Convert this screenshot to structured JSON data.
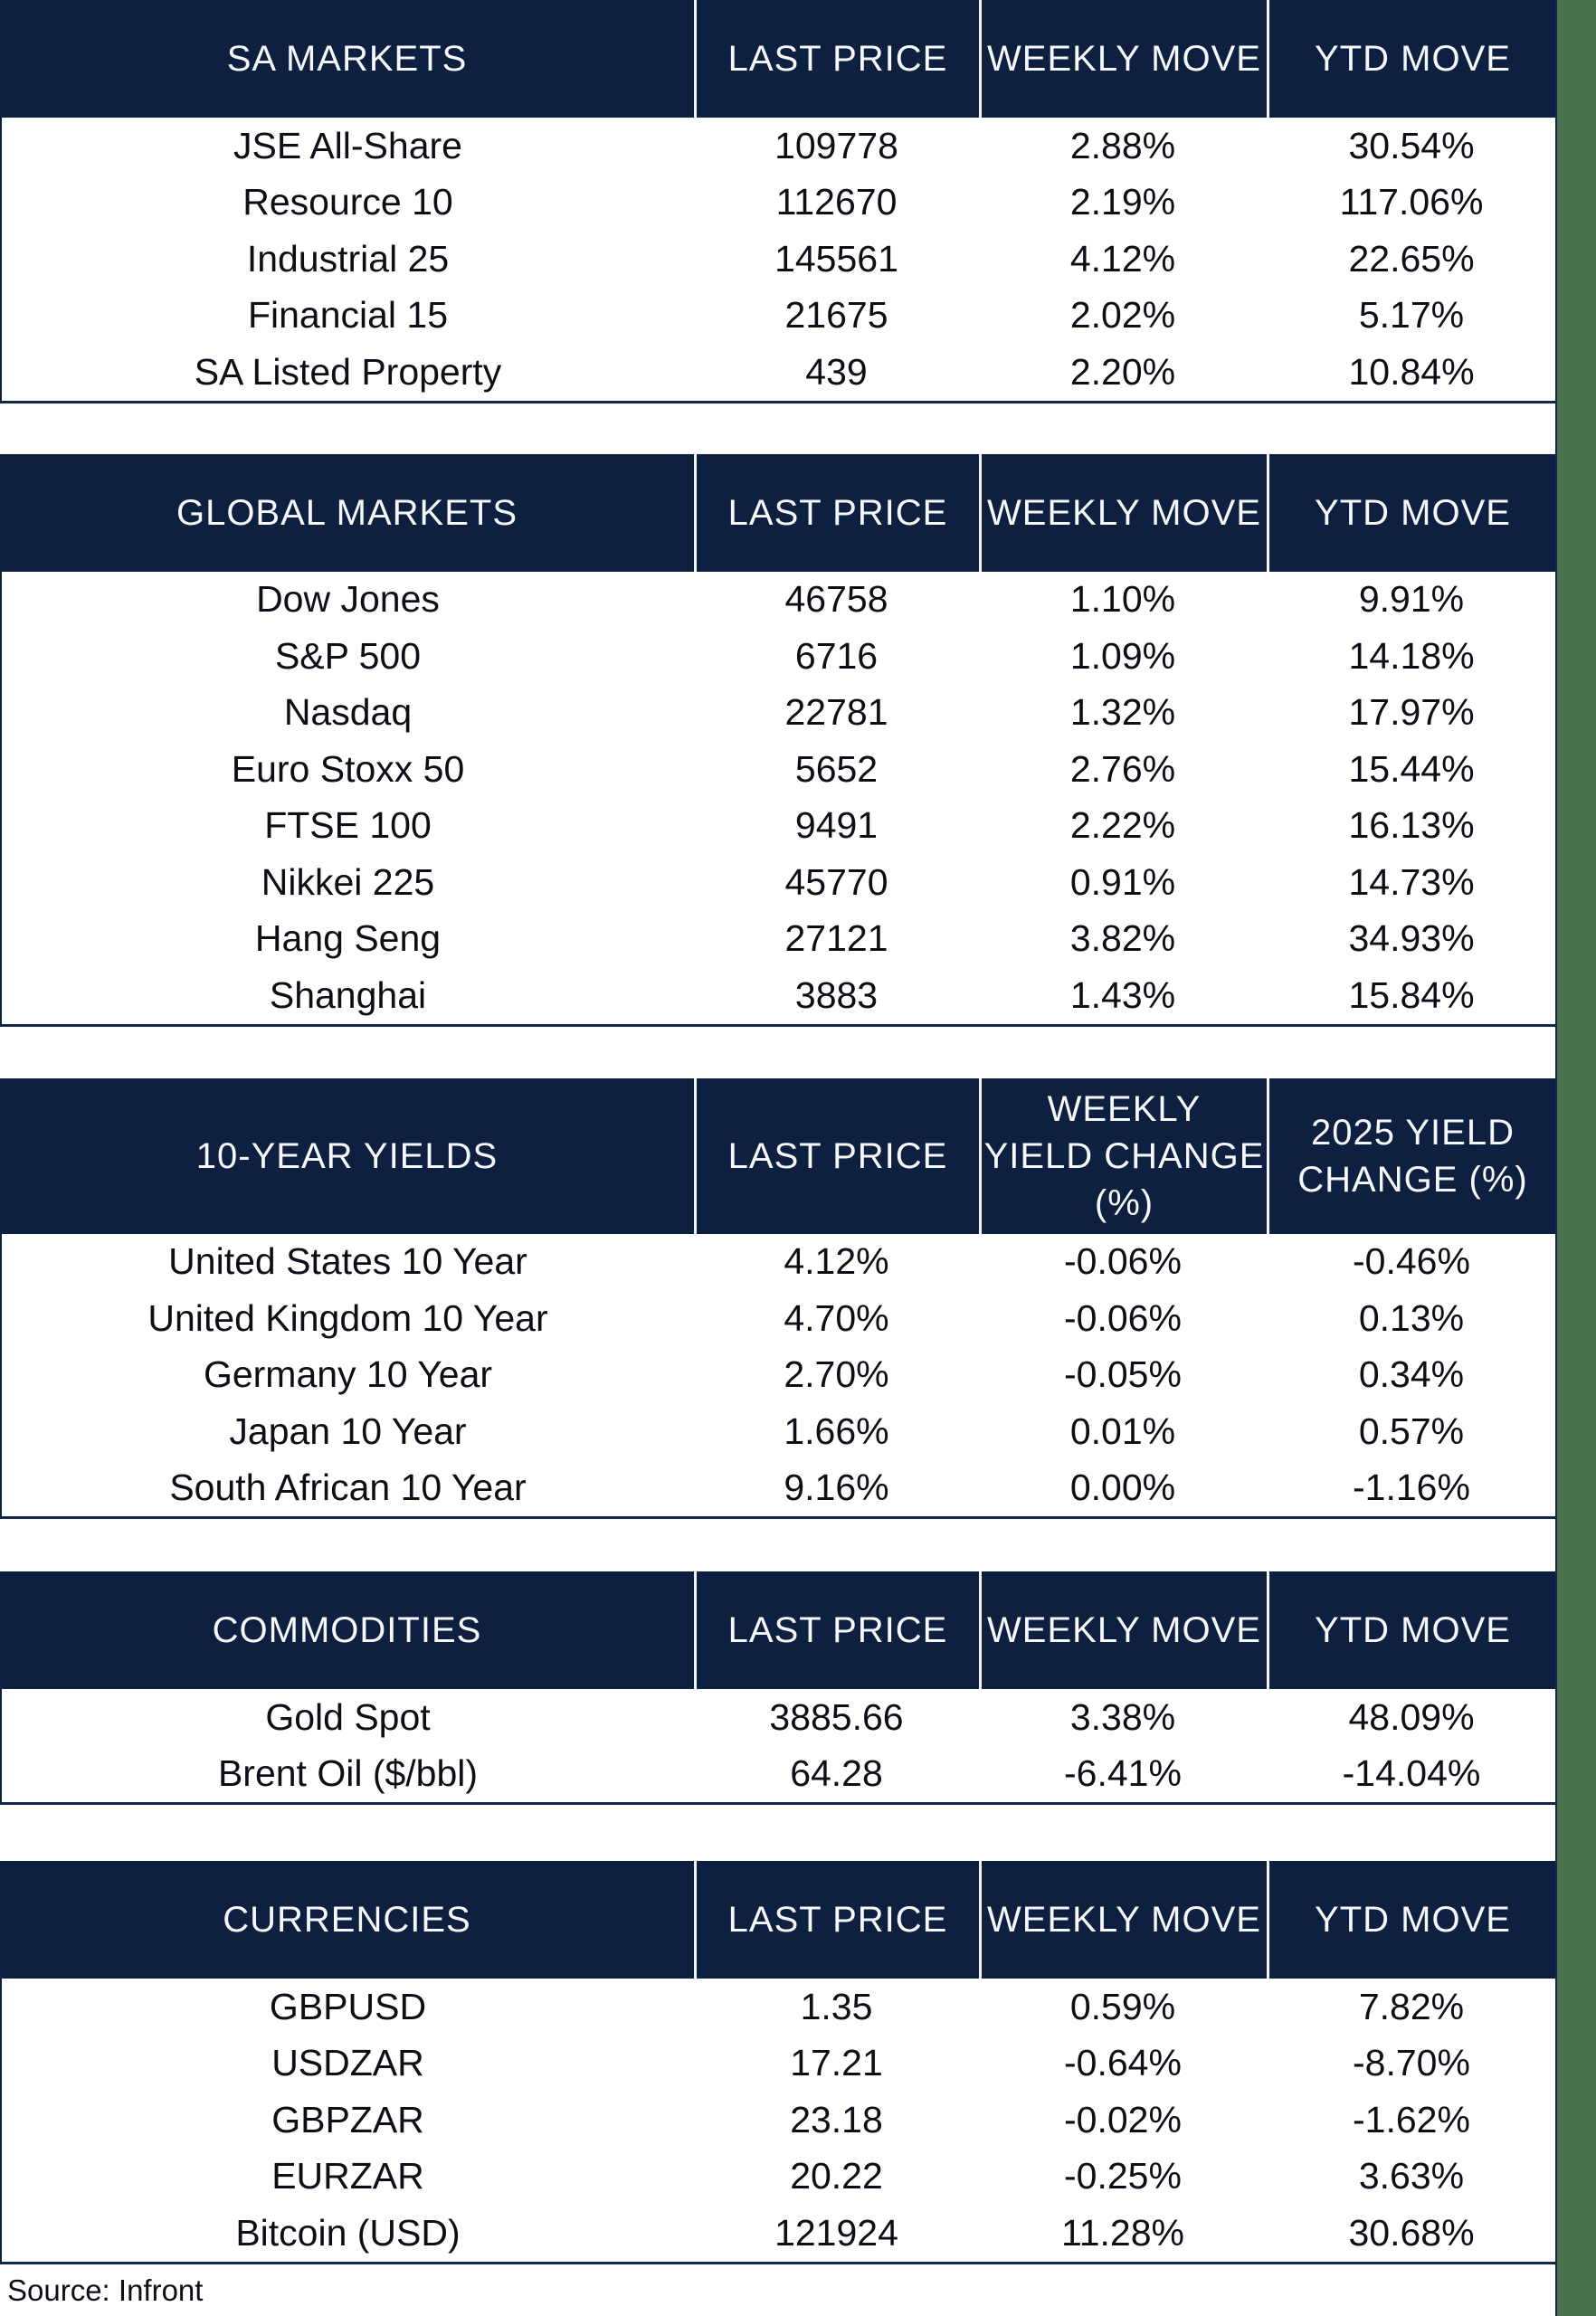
{
  "source_note": "Source: Infront",
  "chart_data": [
    {
      "type": "table",
      "title": "SA MARKETS",
      "columns": [
        "SA MARKETS",
        "LAST PRICE",
        "WEEKLY MOVE",
        "YTD MOVE"
      ],
      "rows": [
        [
          "JSE All-Share",
          "109778",
          "2.88%",
          "30.54%"
        ],
        [
          "Resource 10",
          "112670",
          "2.19%",
          "117.06%"
        ],
        [
          "Industrial 25",
          "145561",
          "4.12%",
          "22.65%"
        ],
        [
          "Financial 15",
          "21675",
          "2.02%",
          "5.17%"
        ],
        [
          "SA Listed Property",
          "439",
          "2.20%",
          "10.84%"
        ]
      ]
    },
    {
      "type": "table",
      "title": "GLOBAL MARKETS",
      "columns": [
        "GLOBAL MARKETS",
        "LAST PRICE",
        "WEEKLY MOVE",
        "YTD MOVE"
      ],
      "rows": [
        [
          "Dow Jones",
          "46758",
          "1.10%",
          "9.91%"
        ],
        [
          "S&P 500",
          "6716",
          "1.09%",
          "14.18%"
        ],
        [
          "Nasdaq",
          "22781",
          "1.32%",
          "17.97%"
        ],
        [
          "Euro Stoxx 50",
          "5652",
          "2.76%",
          "15.44%"
        ],
        [
          "FTSE 100",
          "9491",
          "2.22%",
          "16.13%"
        ],
        [
          "Nikkei 225",
          "45770",
          "0.91%",
          "14.73%"
        ],
        [
          "Hang Seng",
          "27121",
          "3.82%",
          "34.93%"
        ],
        [
          "Shanghai",
          "3883",
          "1.43%",
          "15.84%"
        ]
      ]
    },
    {
      "type": "table",
      "title": "10-YEAR YIELDS",
      "columns": [
        "10-YEAR YIELDS",
        "LAST PRICE",
        "WEEKLY\nYIELD CHANGE\n(%)",
        "2025 YIELD\nCHANGE (%)"
      ],
      "rows": [
        [
          "United States 10 Year",
          "4.12%",
          "-0.06%",
          "-0.46%"
        ],
        [
          "United Kingdom 10 Year",
          "4.70%",
          "-0.06%",
          "0.13%"
        ],
        [
          "Germany 10 Year",
          "2.70%",
          "-0.05%",
          "0.34%"
        ],
        [
          "Japan 10 Year",
          "1.66%",
          "0.01%",
          "0.57%"
        ],
        [
          "South African 10 Year",
          "9.16%",
          "0.00%",
          "-1.16%"
        ]
      ]
    },
    {
      "type": "table",
      "title": "COMMODITIES",
      "columns": [
        "COMMODITIES",
        "LAST PRICE",
        "WEEKLY MOVE",
        "YTD MOVE"
      ],
      "rows": [
        [
          "Gold Spot",
          "3885.66",
          "3.38%",
          "48.09%"
        ],
        [
          "Brent Oil ($/bbl)",
          "64.28",
          "-6.41%",
          "-14.04%"
        ]
      ]
    },
    {
      "type": "table",
      "title": "CURRENCIES",
      "columns": [
        "CURRENCIES",
        "LAST PRICE",
        "WEEKLY MOVE",
        "YTD MOVE"
      ],
      "rows": [
        [
          "GBPUSD",
          "1.35",
          "0.59%",
          "7.82%"
        ],
        [
          "USDZAR",
          "17.21",
          "-0.64%",
          "-8.70%"
        ],
        [
          "GBPZAR",
          "23.18",
          "-0.02%",
          "-1.62%"
        ],
        [
          "EURZAR",
          "20.22",
          "-0.25%",
          "3.63%"
        ],
        [
          "Bitcoin (USD)",
          "121924",
          "11.28%",
          "30.68%"
        ]
      ]
    }
  ],
  "colors": {
    "header_navy": "#0d203f",
    "border_navy": "#12294a",
    "divider_white": "#f2f4f9",
    "page_green": "#48714c",
    "text": "#0c1016"
  }
}
